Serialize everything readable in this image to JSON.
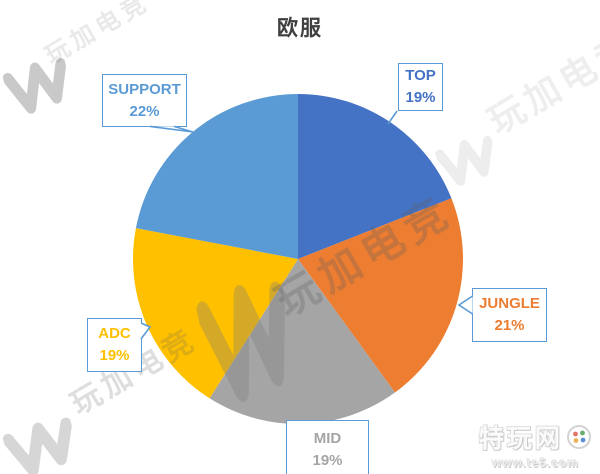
{
  "title": "欧服",
  "chart_data": {
    "type": "pie",
    "title": "欧服",
    "categories": [
      "TOP",
      "JUNGLE",
      "MID",
      "ADC",
      "SUPPORT"
    ],
    "values": [
      19,
      21,
      19,
      19,
      22
    ],
    "unit": "%",
    "colors": [
      "#4472C4",
      "#ED7D31",
      "#A5A5A5",
      "#FFC000",
      "#5B9BD5"
    ],
    "start_angle_deg": 0,
    "direction": "clockwise",
    "label_border_color": "#5B9BD5",
    "labels": [
      {
        "name": "TOP",
        "value": "19%"
      },
      {
        "name": "JUNGLE",
        "value": "21%"
      },
      {
        "name": "MID",
        "value": "19%"
      },
      {
        "name": "ADC",
        "value": "19%"
      },
      {
        "name": "SUPPORT",
        "value": "22%"
      }
    ]
  },
  "watermark": {
    "brand": "玩加电竞",
    "site_name": "特玩网",
    "site_url": "www.te5.com"
  }
}
